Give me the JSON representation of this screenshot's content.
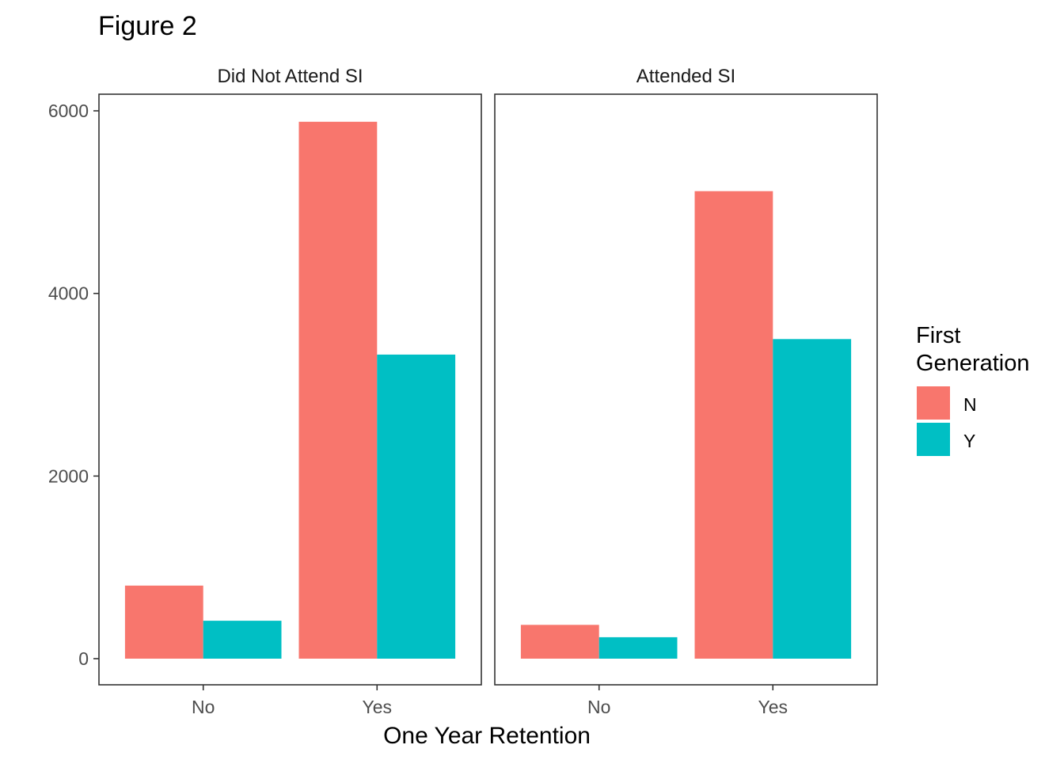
{
  "chart_data": {
    "type": "bar",
    "title": "Figure 2",
    "xlabel": "One Year Retention",
    "ylabel": "",
    "ylim": [
      0,
      6000
    ],
    "y_ticks": [
      0,
      2000,
      4000,
      6000
    ],
    "grid": false,
    "legend": {
      "title": [
        "First",
        "Generation"
      ],
      "placement": "right",
      "entries": [
        {
          "label": "N",
          "color": "#F8766D"
        },
        {
          "label": "Y",
          "color": "#00BFC4"
        }
      ]
    },
    "categories": [
      "No",
      "Yes"
    ],
    "panels": [
      {
        "name": "Did Not Attend SI",
        "series": [
          {
            "name": "N",
            "values": [
              800,
              5880
            ]
          },
          {
            "name": "Y",
            "values": [
              415,
              3330
            ]
          }
        ]
      },
      {
        "name": "Attended SI",
        "series": [
          {
            "name": "N",
            "values": [
              370,
              5120
            ]
          },
          {
            "name": "Y",
            "values": [
              235,
              3500
            ]
          }
        ]
      }
    ]
  }
}
